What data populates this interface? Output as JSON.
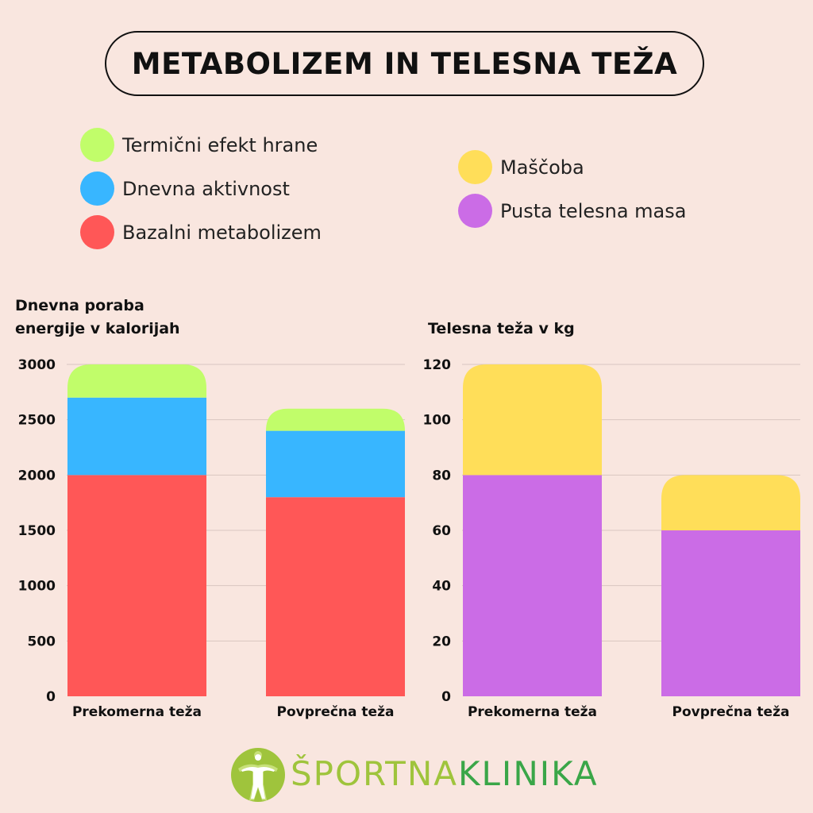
{
  "title": "METABOLIZEM IN TELESNA TEŽA",
  "legend_left": [
    {
      "label": "Termični efekt hrane",
      "color": "#c1fd6a"
    },
    {
      "label": "Dnevna aktivnost",
      "color": "#38b6ff"
    },
    {
      "label": "Bazalni metabolizem",
      "color": "#ff5757"
    }
  ],
  "legend_right": [
    {
      "label": "Maščoba",
      "color": "#ffde59"
    },
    {
      "label": "Pusta telesna masa",
      "color": "#cb6ce6"
    }
  ],
  "logo": {
    "part1": "ŠPORTNA",
    "part2": "KLINIKA",
    "icon": "athlete-figure-icon"
  },
  "chart_data": [
    {
      "type": "bar",
      "stacked": true,
      "title": "",
      "ylabel": "Dnevna poraba energije v kalorijah",
      "ylabel_lines": [
        "Dnevna poraba",
        "energije v kalorijah"
      ],
      "xlabel": "",
      "categories": [
        "Prekomerna teža",
        "Povprečna teža"
      ],
      "series": [
        {
          "name": "Bazalni metabolizem",
          "values": [
            2000,
            1800
          ],
          "color": "#ff5757"
        },
        {
          "name": "Dnevna aktivnost",
          "values": [
            700,
            600
          ],
          "color": "#38b6ff"
        },
        {
          "name": "Termični efekt hrane",
          "values": [
            300,
            200
          ],
          "color": "#c1fd6a"
        }
      ],
      "ylim": [
        0,
        3000
      ],
      "yticks": [
        0,
        500,
        1000,
        1500,
        2000,
        2500,
        3000
      ],
      "grid": true,
      "legend": "top"
    },
    {
      "type": "bar",
      "stacked": true,
      "title": "",
      "ylabel": "Telesna teža v kg",
      "ylabel_lines": [
        "Telesna teža v kg"
      ],
      "xlabel": "",
      "categories": [
        "Prekomerna teža",
        "Povprečna teža"
      ],
      "series": [
        {
          "name": "Pusta telesna masa",
          "values": [
            80,
            60
          ],
          "color": "#cb6ce6"
        },
        {
          "name": "Maščoba",
          "values": [
            40,
            20
          ],
          "color": "#ffde59"
        }
      ],
      "ylim": [
        0,
        120
      ],
      "yticks": [
        0,
        20,
        40,
        60,
        80,
        100,
        120
      ],
      "grid": true,
      "legend": "top"
    }
  ]
}
